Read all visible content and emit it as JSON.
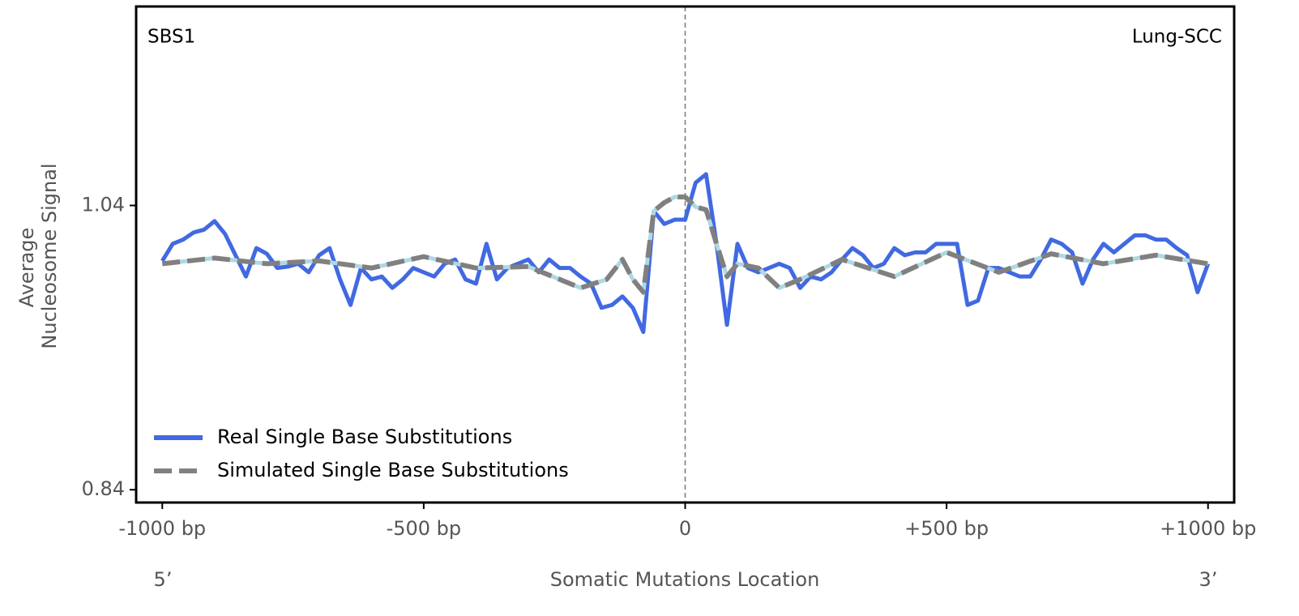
{
  "chart_data": {
    "type": "line",
    "annotations": [
      "SBS1",
      "Lung-SCC"
    ],
    "ylabel": [
      "Average",
      "Nucleosome Signal"
    ],
    "xlabel": "Somatic Mutations Location",
    "end_labels": [
      "5’",
      "3’"
    ],
    "xlim": [
      -1050,
      1050
    ],
    "ylim": [
      0.831,
      1.18
    ],
    "xticks": [
      {
        "value": -1000,
        "label": "-1000 bp"
      },
      {
        "value": -500,
        "label": "-500 bp"
      },
      0,
      {
        "value": 500,
        "label": "+500 bp"
      },
      {
        "value": 1000,
        "label": "+1000 bp"
      }
    ],
    "yticks": [
      0.84,
      1.04
    ],
    "vline": 0,
    "legend": "lower left",
    "x": [
      -1000,
      -980,
      -960,
      -940,
      -920,
      -900,
      -880,
      -860,
      -840,
      -820,
      -800,
      -780,
      -760,
      -740,
      -720,
      -700,
      -680,
      -660,
      -640,
      -620,
      -600,
      -580,
      -560,
      -540,
      -520,
      -500,
      -480,
      -460,
      -440,
      -420,
      -400,
      -380,
      -360,
      -340,
      -320,
      -300,
      -280,
      -260,
      -240,
      -220,
      -200,
      -180,
      -160,
      -140,
      -120,
      -100,
      -80,
      -60,
      -40,
      -20,
      0,
      20,
      40,
      60,
      80,
      100,
      120,
      140,
      160,
      180,
      200,
      220,
      240,
      260,
      280,
      300,
      320,
      340,
      360,
      380,
      400,
      420,
      440,
      460,
      480,
      500,
      520,
      540,
      560,
      580,
      600,
      620,
      640,
      660,
      680,
      700,
      720,
      740,
      760,
      780,
      800,
      820,
      840,
      860,
      880,
      900,
      920,
      940,
      960,
      980,
      1000
    ],
    "series": [
      {
        "name": "Real Single Base Substitutions",
        "color": "#4169e1",
        "values": [
          1.001,
          1.013,
          1.016,
          1.021,
          1.023,
          1.029,
          1.02,
          1.005,
          0.99,
          1.01,
          1.006,
          0.996,
          0.997,
          0.999,
          0.993,
          1.005,
          1.01,
          0.988,
          0.97,
          0.996,
          0.988,
          0.99,
          0.982,
          0.988,
          0.996,
          0.993,
          0.99,
          0.999,
          1.002,
          0.988,
          0.985,
          1.013,
          0.988,
          0.996,
          0.999,
          1.002,
          0.993,
          1.002,
          0.996,
          0.996,
          0.99,
          0.985,
          0.968,
          0.97,
          0.976,
          0.968,
          0.951,
          1.036,
          1.027,
          1.03,
          1.03,
          1.056,
          1.062,
          1.013,
          0.956,
          1.013,
          0.996,
          0.993,
          0.996,
          0.999,
          0.996,
          0.982,
          0.99,
          0.988,
          0.993,
          1.002,
          1.01,
          1.005,
          0.996,
          0.999,
          1.01,
          1.005,
          1.007,
          1.007,
          1.013,
          1.013,
          1.013,
          0.97,
          0.973,
          0.996,
          0.996,
          0.993,
          0.99,
          0.99,
          1.002,
          1.016,
          1.013,
          1.007,
          0.985,
          1.002,
          1.013,
          1.007,
          1.013,
          1.019,
          1.019,
          1.016,
          1.016,
          1.01,
          1.005,
          0.979,
          0.999
        ]
      },
      {
        "name": "Simulated Single Base Substitutions",
        "color": "#808080",
        "gap_color": "#add8e6",
        "x": [
          -1000,
          -900,
          -800,
          -700,
          -600,
          -500,
          -400,
          -300,
          -200,
          -150,
          -120,
          -100,
          -80,
          -60,
          -40,
          -20,
          0,
          20,
          40,
          60,
          80,
          100,
          140,
          180,
          220,
          300,
          400,
          500,
          600,
          700,
          800,
          900,
          1000
        ],
        "values": [
          0.999,
          1.003,
          0.999,
          1.001,
          0.996,
          1.004,
          0.996,
          0.997,
          0.982,
          0.988,
          1.002,
          0.988,
          0.979,
          1.036,
          1.042,
          1.046,
          1.046,
          1.039,
          1.037,
          1.013,
          0.99,
          0.999,
          0.996,
          0.982,
          0.988,
          1.002,
          0.99,
          1.007,
          0.993,
          1.006,
          0.999,
          1.005,
          0.999
        ]
      }
    ]
  }
}
